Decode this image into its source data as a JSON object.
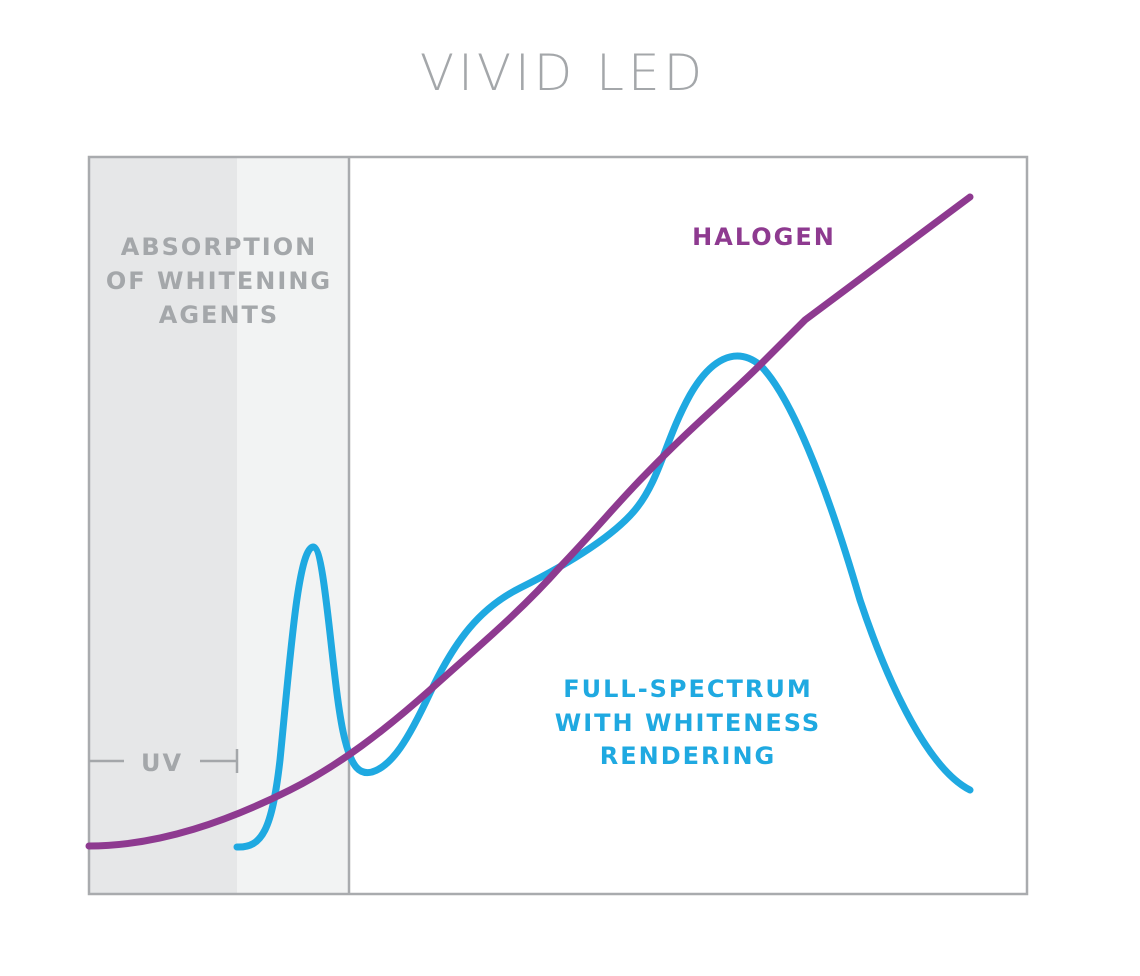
{
  "title": "VIVID LED",
  "absorption_label": [
    "ABSORPTION",
    "OF WHITENING",
    "AGENTS"
  ],
  "halogen_label": "HALOGEN",
  "full_spectrum_label": [
    "FULL-SPECTRUM",
    "WITH WHITENESS",
    "RENDERING"
  ],
  "uv_label": "UV"
}
